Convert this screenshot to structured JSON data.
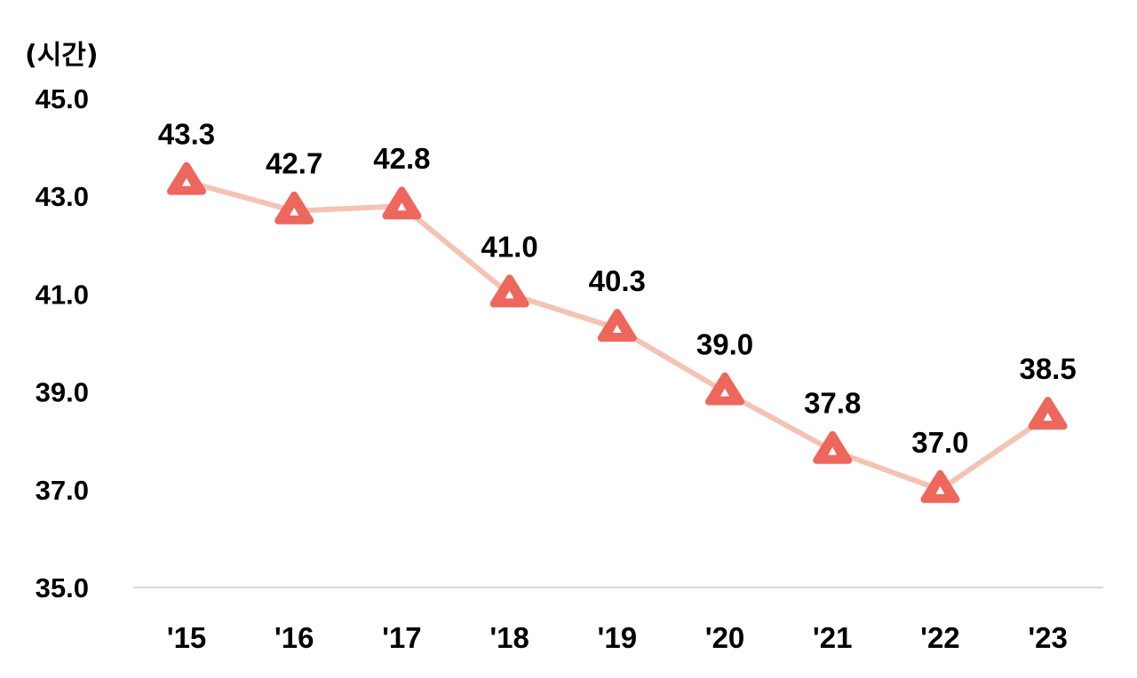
{
  "chart_data": {
    "type": "line",
    "unit_label": "(시간)",
    "categories": [
      "'15",
      "'16",
      "'17",
      "'18",
      "'19",
      "'20",
      "'21",
      "'22",
      "'23"
    ],
    "values": [
      43.3,
      42.7,
      42.8,
      41.0,
      40.3,
      39.0,
      37.8,
      37.0,
      38.5
    ],
    "data_labels": [
      "43.3",
      "42.7",
      "42.8",
      "41.0",
      "40.3",
      "39.0",
      "37.8",
      "37.0",
      "38.5"
    ],
    "y_ticks": [
      "45.0",
      "43.0",
      "41.0",
      "39.0",
      "37.0",
      "35.0"
    ],
    "ylim": [
      35,
      45
    ],
    "marker": "triangle",
    "grid": false,
    "colors": {
      "line": "#f4c3b4",
      "marker": "#ee675c",
      "marker_inner": "#ffffff",
      "axis": "#d9d9d9",
      "text": "#000000"
    }
  }
}
